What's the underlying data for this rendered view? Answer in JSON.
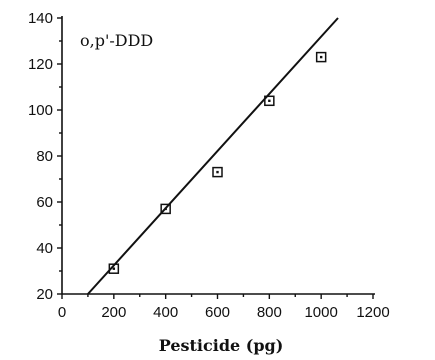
{
  "chart_data": {
    "type": "scatter",
    "annotation": "o,p'-DDD",
    "xlabel": "Pesticide (pg)",
    "ylabel": "",
    "xlim": [
      0,
      1200
    ],
    "ylim": [
      20,
      140
    ],
    "x_ticks": [
      0,
      200,
      400,
      600,
      800,
      1000,
      1200
    ],
    "y_ticks": [
      20,
      40,
      60,
      80,
      100,
      120,
      140
    ],
    "x_tick_labels": [
      "0",
      "200",
      "400",
      "600",
      "800",
      "1000",
      "1200"
    ],
    "y_tick_labels": [
      "20",
      "40",
      "60",
      "80",
      "100",
      "120",
      "140"
    ],
    "grid": false,
    "series": [
      {
        "x": [
          200,
          400,
          600,
          800,
          1000
        ],
        "y": [
          31,
          57,
          73,
          104,
          123
        ],
        "marker": "square"
      }
    ],
    "fit_line": {
      "x": [
        100,
        1065
      ],
      "y": [
        20,
        140
      ]
    },
    "colors": {
      "ink": "#111111",
      "background": "#ffffff"
    }
  }
}
